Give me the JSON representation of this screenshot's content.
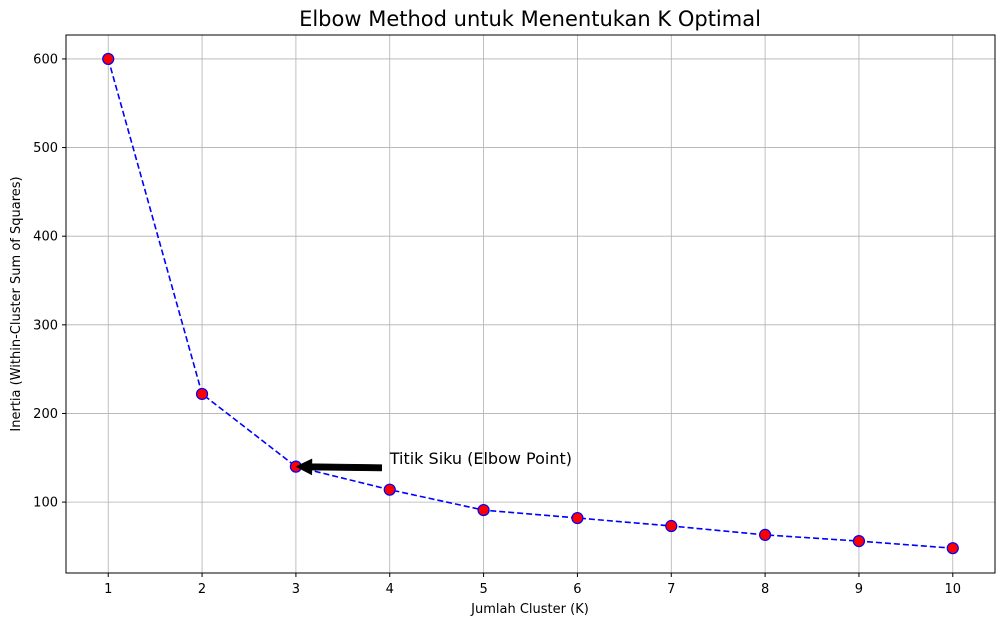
{
  "chart_data": {
    "type": "line",
    "title": "Elbow Method untuk Menentukan K Optimal",
    "xlabel": "Jumlah Cluster (K)",
    "ylabel": "Inertia (Within-Cluster Sum of Squares)",
    "x": [
      1,
      2,
      3,
      4,
      5,
      6,
      7,
      8,
      9,
      10
    ],
    "series": [
      {
        "name": "Inertia",
        "values": [
          600,
          222,
          140,
          114,
          91,
          82,
          73,
          63,
          56,
          48
        ]
      }
    ],
    "xlim": [
      0.55,
      10.45
    ],
    "ylim": [
      20,
      627
    ],
    "xticks": [
      1,
      2,
      3,
      4,
      5,
      6,
      7,
      8,
      9,
      10
    ],
    "yticks": [
      100,
      200,
      300,
      400,
      500,
      600
    ],
    "grid": true,
    "line_color": "#0000ff",
    "line_style": "dashed",
    "marker_fill": "#ff0000",
    "marker_edge": "#0000ff",
    "annotation": {
      "text": "Titik Siku (Elbow Point)",
      "point": {
        "x": 3,
        "y": 140
      },
      "text_pos": {
        "x": 4,
        "y": 150
      }
    }
  }
}
